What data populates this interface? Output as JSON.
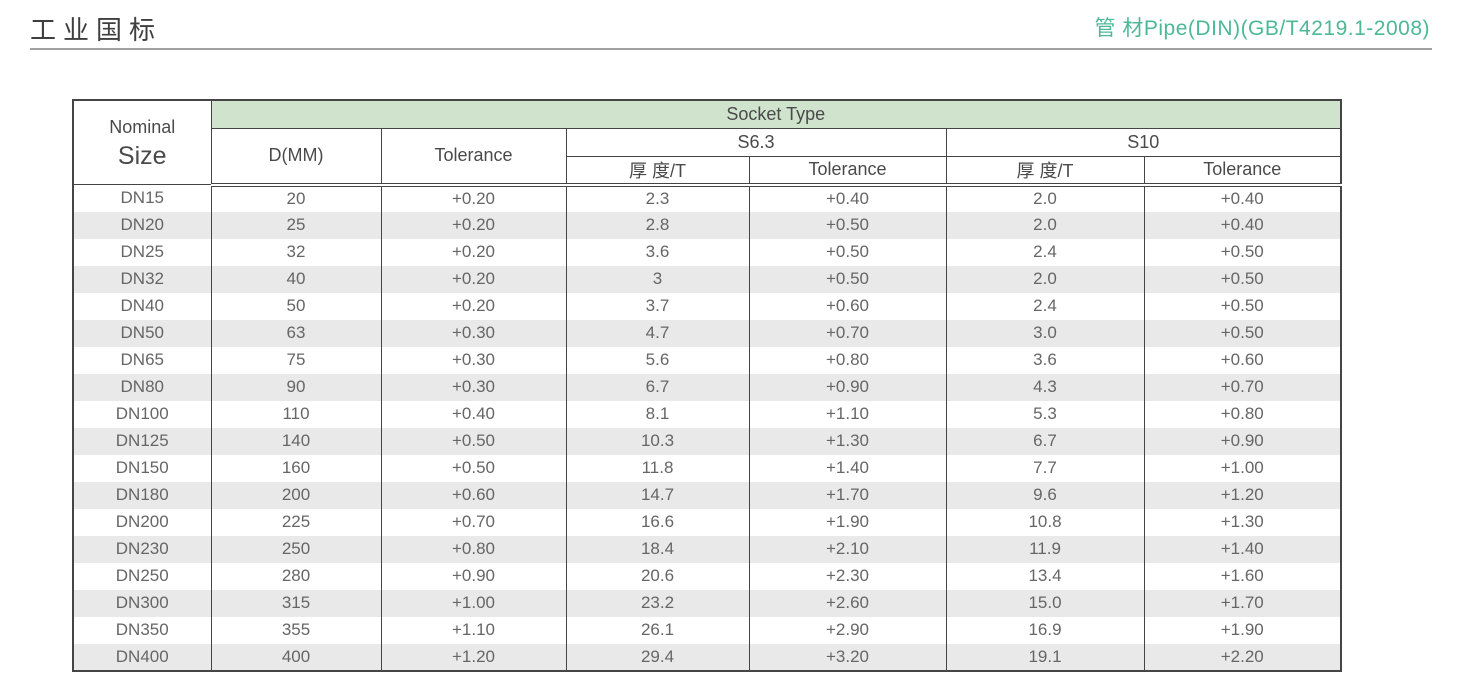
{
  "page": {
    "title": "工业国标",
    "subtitle": "管 材Pipe(DIN)(GB/T4219.1-2008)"
  },
  "colors": {
    "accent_teal": "#4db896",
    "header_green": "#cfe3cd",
    "stripe_gray": "#e9e9e9",
    "border_dark": "#454545"
  },
  "table": {
    "header": {
      "nominal_line1": "Nominal",
      "nominal_line2": "Size",
      "socket_type": "Socket Type",
      "d_mm": "D(MM)",
      "tolerance": "Tolerance",
      "s63": "S6.3",
      "s10": "S10",
      "thickness_s63": "厚 度/T",
      "tolerance_s63": "Tolerance",
      "thickness_s10": "厚 度/T",
      "tolerance_s10": "Tolerance"
    },
    "rows": [
      [
        "DN15",
        "20",
        "+0.20",
        "2.3",
        "+0.40",
        "2.0",
        "+0.40"
      ],
      [
        "DN20",
        "25",
        "+0.20",
        "2.8",
        "+0.50",
        "2.0",
        "+0.40"
      ],
      [
        "DN25",
        "32",
        "+0.20",
        "3.6",
        "+0.50",
        "2.4",
        "+0.50"
      ],
      [
        "DN32",
        "40",
        "+0.20",
        "3",
        "+0.50",
        "2.0",
        "+0.50"
      ],
      [
        "DN40",
        "50",
        "+0.20",
        "3.7",
        "+0.60",
        "2.4",
        "+0.50"
      ],
      [
        "DN50",
        "63",
        "+0.30",
        "4.7",
        "+0.70",
        "3.0",
        "+0.50"
      ],
      [
        "DN65",
        "75",
        "+0.30",
        "5.6",
        "+0.80",
        "3.6",
        "+0.60"
      ],
      [
        "DN80",
        "90",
        "+0.30",
        "6.7",
        "+0.90",
        "4.3",
        "+0.70"
      ],
      [
        "DN100",
        "110",
        "+0.40",
        "8.1",
        "+1.10",
        "5.3",
        "+0.80"
      ],
      [
        "DN125",
        "140",
        "+0.50",
        "10.3",
        "+1.30",
        "6.7",
        "+0.90"
      ],
      [
        "DN150",
        "160",
        "+0.50",
        "11.8",
        "+1.40",
        "7.7",
        "+1.00"
      ],
      [
        "DN180",
        "200",
        "+0.60",
        "14.7",
        "+1.70",
        "9.6",
        "+1.20"
      ],
      [
        "DN200",
        "225",
        "+0.70",
        "16.6",
        "+1.90",
        "10.8",
        "+1.30"
      ],
      [
        "DN230",
        "250",
        "+0.80",
        "18.4",
        "+2.10",
        "11.9",
        "+1.40"
      ],
      [
        "DN250",
        "280",
        "+0.90",
        "20.6",
        "+2.30",
        "13.4",
        "+1.60"
      ],
      [
        "DN300",
        "315",
        "+1.00",
        "23.2",
        "+2.60",
        "15.0",
        "+1.70"
      ],
      [
        "DN350",
        "355",
        "+1.10",
        "26.1",
        "+2.90",
        "16.9",
        "+1.90"
      ],
      [
        "DN400",
        "400",
        "+1.20",
        "29.4",
        "+3.20",
        "19.1",
        "+2.20"
      ]
    ]
  }
}
